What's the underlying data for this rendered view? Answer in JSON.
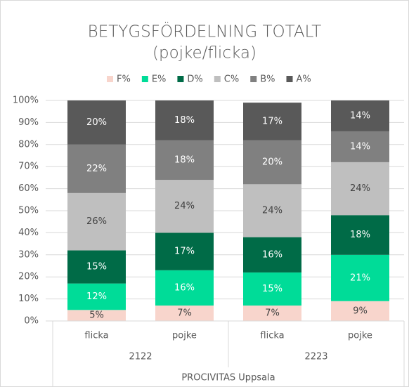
{
  "chart_data": {
    "type": "stacked_bar",
    "title": [
      "BETYGSFÖRDELNING TOTALT",
      "(pojke/flicka)"
    ],
    "categories": [
      "flicka",
      "pojke",
      "flicka",
      "pojke"
    ],
    "groups": [
      "2122",
      "2223"
    ],
    "group_label": "PROCIVITAS Uppsala",
    "series": [
      {
        "name": "F%",
        "color": "#f8d5cc",
        "label_color": "#404040",
        "values": [
          5,
          7,
          7,
          9
        ],
        "value_labels": [
          "5%",
          "7%",
          "7%",
          "9%"
        ]
      },
      {
        "name": "E%",
        "color": "#00dc98",
        "label_color": "#ffffff",
        "values": [
          12,
          16,
          15,
          21
        ],
        "value_labels": [
          "12%",
          "16%",
          "15%",
          "21%"
        ]
      },
      {
        "name": "D%",
        "color": "#006b47",
        "label_color": "#ffffff",
        "values": [
          15,
          17,
          16,
          18
        ],
        "value_labels": [
          "15%",
          "17%",
          "16%",
          "18%"
        ]
      },
      {
        "name": "C%",
        "color": "#bfbfbf",
        "label_color": "#404040",
        "values": [
          26,
          24,
          24,
          24
        ],
        "value_labels": [
          "26%",
          "24%",
          "24%",
          "24%"
        ]
      },
      {
        "name": "B%",
        "color": "#808080",
        "label_color": "#ffffff",
        "values": [
          22,
          18,
          20,
          14
        ],
        "value_labels": [
          "22%",
          "18%",
          "20%",
          "14%"
        ]
      },
      {
        "name": "A%",
        "color": "#595959",
        "label_color": "#ffffff",
        "values": [
          20,
          18,
          17,
          14
        ],
        "value_labels": [
          "20%",
          "18%",
          "17%",
          "14%"
        ]
      }
    ],
    "ylim": [
      0,
      100
    ],
    "yticks": [
      {
        "value": 0,
        "label": "0%"
      },
      {
        "value": 10,
        "label": "10%"
      },
      {
        "value": 20,
        "label": "20%"
      },
      {
        "value": 30,
        "label": "30%"
      },
      {
        "value": 40,
        "label": "40%"
      },
      {
        "value": 50,
        "label": "50%"
      },
      {
        "value": 60,
        "label": "60%"
      },
      {
        "value": 70,
        "label": "70%"
      },
      {
        "value": 80,
        "label": "80%"
      },
      {
        "value": 90,
        "label": "90%"
      },
      {
        "value": 100,
        "label": "100%"
      }
    ],
    "grid": true,
    "legend": "top"
  }
}
